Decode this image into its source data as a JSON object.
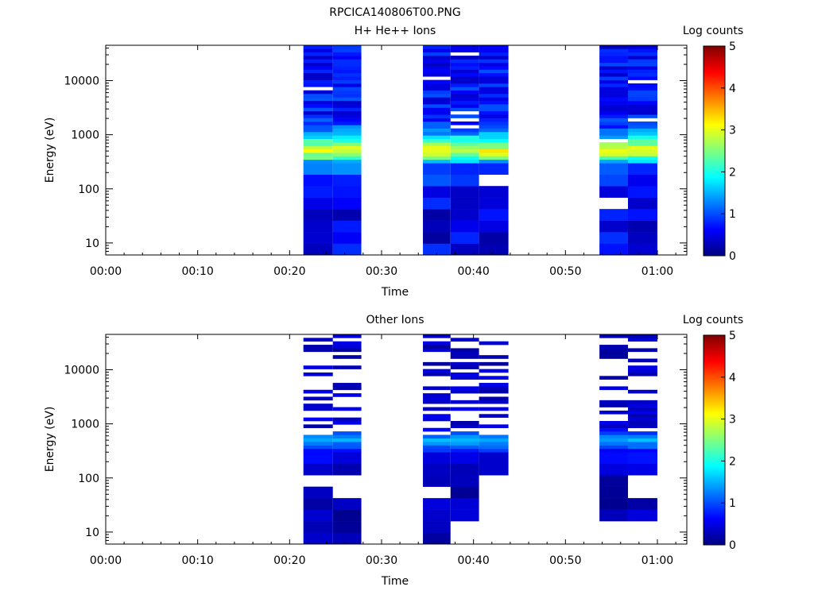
{
  "figure_title": "RPCICA140806T00.PNG",
  "chart_data": [
    {
      "type": "heatmap",
      "title": "H+ He++ Ions",
      "xlabel": "Time",
      "ylabel": "Energy (eV)",
      "x_tick_labels": [
        "00:00",
        "00:10",
        "00:20",
        "00:30",
        "00:40",
        "00:50",
        "01:00"
      ],
      "x_ticks_min": [
        0,
        10,
        20,
        30,
        40,
        50,
        60
      ],
      "xlim_min": [
        0,
        63.2
      ],
      "y_scale": "log",
      "y_tick_labels": [
        "10",
        "100",
        "1000",
        "10000"
      ],
      "y_ticks": [
        10,
        100,
        1000,
        10000
      ],
      "ylim": [
        6,
        45000
      ],
      "colorbar": {
        "label": "Log counts",
        "ticks": [
          "0",
          "1",
          "2",
          "3",
          "4",
          "5"
        ],
        "range": [
          0,
          5
        ]
      },
      "time_bins_min": [
        [
          21.5,
          24.7
        ],
        [
          24.7,
          27.8
        ],
        [
          34.5,
          37.5
        ],
        [
          37.5,
          40.6
        ],
        [
          40.6,
          43.8
        ],
        [
          53.7,
          56.8
        ],
        [
          56.8,
          60.0
        ]
      ],
      "profile": [
        {
          "e": 10,
          "v": 0.5
        },
        {
          "e": 100,
          "v": 0.55
        },
        {
          "e": 200,
          "v": 0.9
        },
        {
          "e": 320,
          "v": 1.6
        },
        {
          "e": 420,
          "v": 2.6
        },
        {
          "e": 520,
          "v": 3.05
        },
        {
          "e": 650,
          "v": 2.6
        },
        {
          "e": 850,
          "v": 1.8
        },
        {
          "e": 1100,
          "v": 1.3
        },
        {
          "e": 1500,
          "v": 0.95
        },
        {
          "e": 2500,
          "v": 0.7
        },
        {
          "e": 45000,
          "v": 0.65
        }
      ],
      "noise": 0.35,
      "gap_prob": 0.05,
      "min_energy_per_bin": [
        6,
        6,
        6,
        6,
        6,
        6,
        6
      ],
      "gap_ranges": [
        {
          "bin": 2,
          "e": [
            102,
            132
          ]
        },
        {
          "bin": 4,
          "e": [
            140,
            160
          ]
        },
        {
          "bin": 5,
          "e": [
            44,
            70
          ]
        }
      ]
    },
    {
      "type": "heatmap",
      "title": "Other Ions",
      "xlabel": "Time",
      "ylabel": "Energy (eV)",
      "x_tick_labels": [
        "00:00",
        "00:10",
        "00:20",
        "00:30",
        "00:40",
        "00:50",
        "01:00"
      ],
      "x_ticks_min": [
        0,
        10,
        20,
        30,
        40,
        50,
        60
      ],
      "xlim_min": [
        0,
        63.2
      ],
      "y_scale": "log",
      "y_tick_labels": [
        "10",
        "100",
        "1000",
        "10000"
      ],
      "y_ticks": [
        10,
        100,
        1000,
        10000
      ],
      "ylim": [
        6,
        45000
      ],
      "colorbar": {
        "label": "Log counts",
        "ticks": [
          "0",
          "1",
          "2",
          "3",
          "4",
          "5"
        ],
        "range": [
          0,
          5
        ]
      },
      "time_bins_min": [
        [
          21.5,
          24.7
        ],
        [
          24.7,
          27.8
        ],
        [
          34.5,
          37.5
        ],
        [
          37.5,
          40.6
        ],
        [
          40.6,
          43.8
        ],
        [
          53.7,
          56.8
        ],
        [
          56.8,
          60.0
        ]
      ],
      "profile": [
        {
          "e": 10,
          "v": 0.25
        },
        {
          "e": 100,
          "v": 0.3
        },
        {
          "e": 300,
          "v": 0.6
        },
        {
          "e": 430,
          "v": 1.2
        },
        {
          "e": 520,
          "v": 1.6
        },
        {
          "e": 640,
          "v": 1.0
        },
        {
          "e": 900,
          "v": 0.4
        },
        {
          "e": 45000,
          "v": 0.3
        }
      ],
      "noise": 0.2,
      "gap_prob": 0.45,
      "min_energy_per_bin": [
        6,
        6,
        6,
        6,
        140,
        15,
        15
      ],
      "gap_ranges": [
        {
          "bin": 0,
          "e": [
            68,
            90
          ]
        },
        {
          "bin": 1,
          "e": [
            35,
            95
          ]
        },
        {
          "bin": 2,
          "e": [
            35,
            60
          ]
        },
        {
          "bin": 3,
          "e": [
            6,
            14
          ]
        },
        {
          "bin": 6,
          "e": [
            38,
            90
          ]
        }
      ]
    }
  ]
}
